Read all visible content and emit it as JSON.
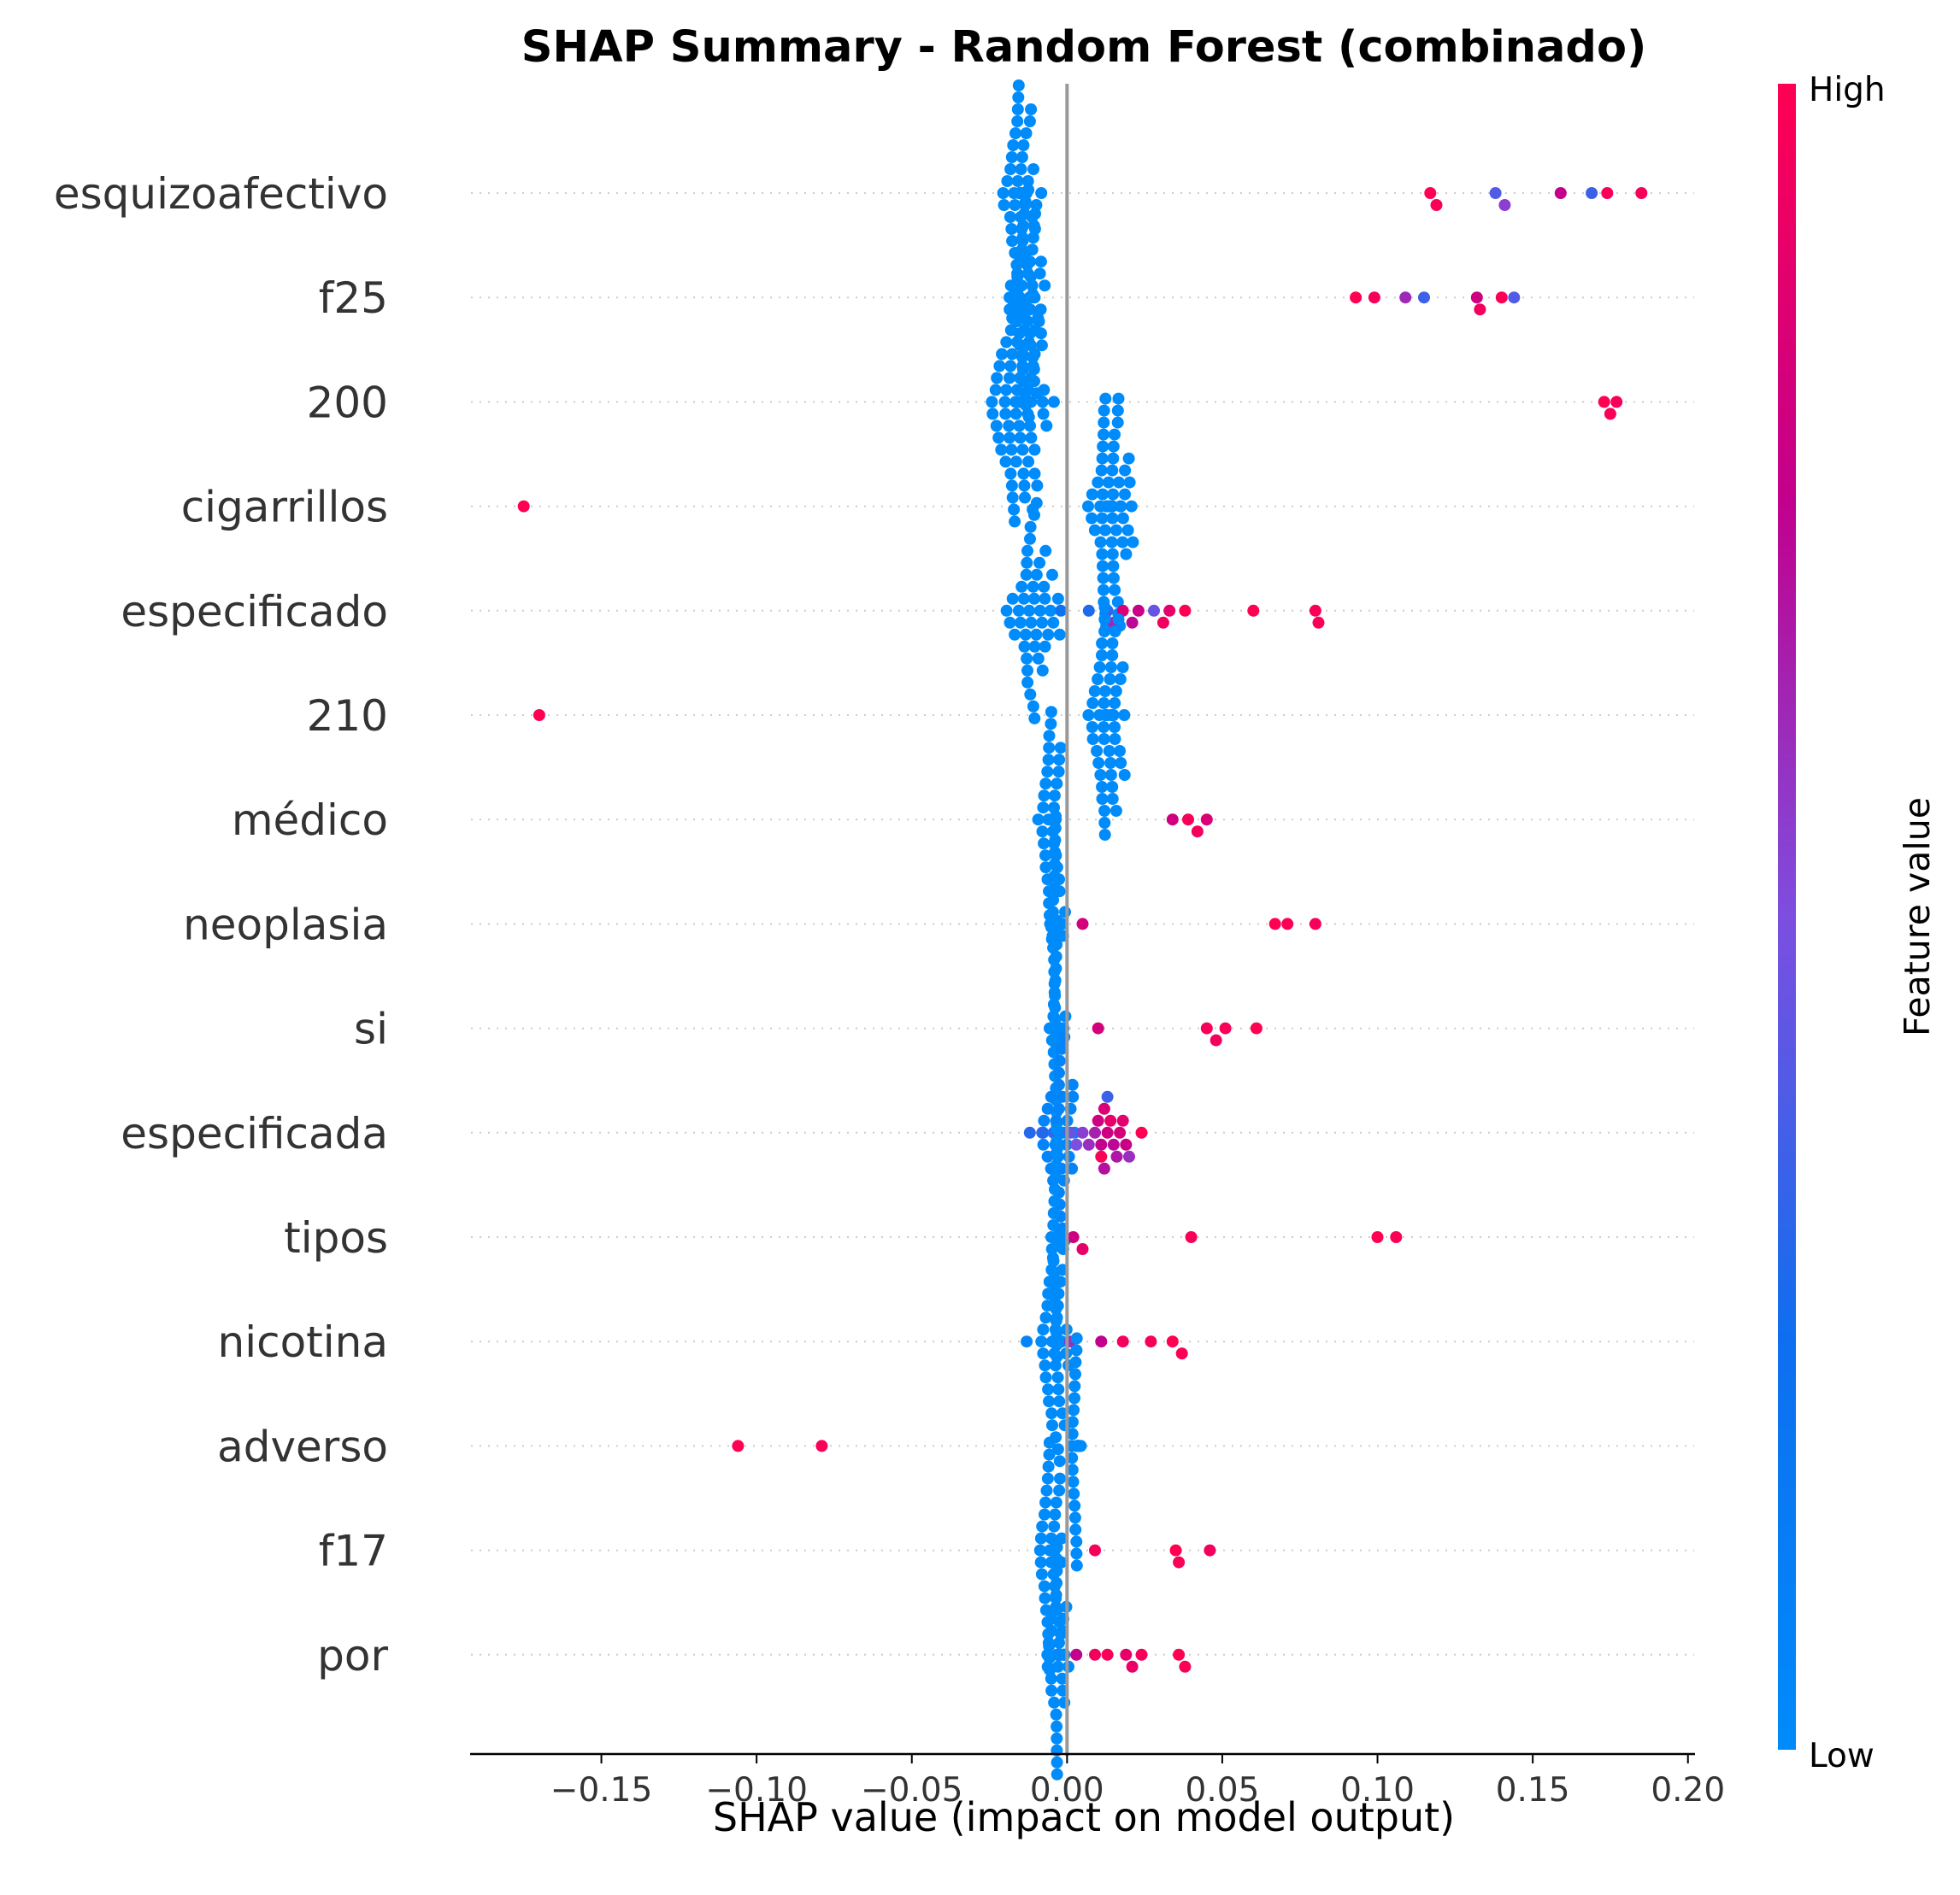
{
  "chart_data": {
    "type": "scatter",
    "subtype": "shap-beeswarm",
    "title": "SHAP Summary - Random Forest (combinado)",
    "xlabel": "SHAP value (impact on model output)",
    "xlim": [
      -0.192,
      0.202
    ],
    "xticks": [
      -0.15,
      -0.1,
      -0.05,
      0.0,
      0.05,
      0.1,
      0.15,
      0.2
    ],
    "xtick_labels": [
      "−0.15",
      "−0.10",
      "−0.05",
      "0.00",
      "0.05",
      "0.10",
      "0.15",
      "0.20"
    ],
    "colorbar": {
      "label": "Feature value",
      "high": "High",
      "low": "Low",
      "low_color": "#008bfb",
      "high_color": "#ff0052"
    },
    "features": [
      {
        "name": "esquizoafectivo",
        "cluster": {
          "center": -0.015,
          "spread": 0.009,
          "count": 60,
          "color": 0.0
        },
        "points": [
          [
            0.117,
            1.0
          ],
          [
            0.119,
            0.98
          ],
          [
            0.138,
            0.4
          ],
          [
            0.141,
            0.55
          ],
          [
            0.159,
            0.75
          ],
          [
            0.169,
            0.35
          ],
          [
            0.174,
            0.97
          ],
          [
            0.185,
            0.96
          ]
        ]
      },
      {
        "name": "f25",
        "cluster": {
          "center": -0.013,
          "spread": 0.008,
          "count": 50,
          "color": 0.0
        },
        "points": [
          [
            0.093,
            1.0
          ],
          [
            0.099,
            0.97
          ],
          [
            0.109,
            0.62
          ],
          [
            0.115,
            0.35
          ],
          [
            0.132,
            0.8
          ],
          [
            0.133,
            0.95
          ],
          [
            0.14,
            0.98
          ],
          [
            0.144,
            0.4
          ]
        ]
      },
      {
        "name": "200",
        "cluster": {
          "center": -0.015,
          "spread": 0.012,
          "count": 75,
          "color": 0.0
        },
        "points": [
          [
            0.173,
            1.0
          ],
          [
            0.175,
            0.98
          ],
          [
            0.177,
            0.97
          ]
        ]
      },
      {
        "name": "cigarrillos",
        "cluster": {
          "center": 0.014,
          "spread": 0.009,
          "count": 65,
          "color": 0.0
        },
        "points": [
          [
            -0.175,
            1.0
          ]
        ]
      },
      {
        "name": "especificado",
        "cluster": {
          "center": -0.01,
          "spread": 0.01,
          "count": 45,
          "color": 0.0
        },
        "points": [
          [
            -0.002,
            0.2
          ],
          [
            0.007,
            0.28
          ],
          [
            0.013,
            0.35
          ],
          [
            0.015,
            0.62
          ],
          [
            0.018,
            0.85
          ],
          [
            0.021,
            0.72
          ],
          [
            0.023,
            0.78
          ],
          [
            0.028,
            0.45
          ],
          [
            0.031,
            0.95
          ],
          [
            0.033,
            0.9
          ],
          [
            0.038,
            1.0
          ],
          [
            0.06,
            1.0
          ],
          [
            0.08,
            0.97
          ],
          [
            0.081,
            0.98
          ]
        ]
      },
      {
        "name": "210",
        "cluster": {
          "center": 0.013,
          "spread": 0.008,
          "count": 60,
          "color": 0.0
        },
        "points": [
          [
            -0.17,
            1.0
          ]
        ]
      },
      {
        "name": "médico",
        "cluster": {
          "center": -0.005,
          "spread": 0.005,
          "count": 40,
          "color": 0.0
        },
        "points": [
          [
            0.034,
            0.8
          ],
          [
            0.039,
            0.97
          ],
          [
            0.042,
            0.95
          ],
          [
            0.045,
            0.85
          ]
        ]
      },
      {
        "name": "neoplasia",
        "cluster": {
          "center": -0.003,
          "spread": 0.003,
          "count": 55,
          "color": 0.0
        },
        "points": [
          [
            0.005,
            0.82
          ],
          [
            0.067,
            1.0
          ],
          [
            0.071,
            0.98
          ],
          [
            0.08,
            0.97
          ]
        ]
      },
      {
        "name": "si",
        "cluster": {
          "center": -0.003,
          "spread": 0.003,
          "count": 50,
          "color": 0.0
        },
        "points": [
          [
            0.01,
            0.82
          ],
          [
            0.045,
            0.97
          ],
          [
            0.048,
            0.95
          ],
          [
            0.051,
            0.98
          ],
          [
            0.061,
            1.0
          ]
        ]
      },
      {
        "name": "especificada",
        "cluster": {
          "center": -0.002,
          "spread": 0.008,
          "count": 35,
          "color": 0.05
        },
        "points": [
          [
            -0.012,
            0.3
          ],
          [
            -0.008,
            0.3
          ],
          [
            -0.004,
            0.35
          ],
          [
            0.001,
            0.45
          ],
          [
            0.003,
            0.5
          ],
          [
            0.005,
            0.55
          ],
          [
            0.007,
            0.6
          ],
          [
            0.009,
            0.65
          ],
          [
            0.01,
            0.8
          ],
          [
            0.011,
            0.75
          ],
          [
            0.012,
            0.85
          ],
          [
            0.012,
            0.7
          ],
          [
            0.013,
            0.8
          ],
          [
            0.014,
            0.9
          ],
          [
            0.015,
            0.72
          ],
          [
            0.016,
            0.68
          ],
          [
            0.017,
            0.82
          ],
          [
            0.018,
            0.88
          ],
          [
            0.019,
            0.78
          ],
          [
            0.02,
            0.6
          ],
          [
            0.011,
            0.98
          ],
          [
            0.013,
            0.35
          ],
          [
            0.024,
            1.0
          ]
        ]
      },
      {
        "name": "tipos",
        "cluster": {
          "center": -0.003,
          "spread": 0.003,
          "count": 45,
          "color": 0.0
        },
        "points": [
          [
            0.002,
            0.8
          ],
          [
            0.005,
            0.9
          ],
          [
            0.04,
            0.97
          ],
          [
            0.1,
            1.0
          ],
          [
            0.106,
            0.98
          ]
        ]
      },
      {
        "name": "nicotina",
        "cluster": {
          "center": -0.004,
          "spread": 0.006,
          "count": 40,
          "color": 0.0
        },
        "points": [
          [
            -0.013,
            0.05
          ],
          [
            0.001,
            0.6
          ],
          [
            0.011,
            0.75
          ],
          [
            0.018,
            0.95
          ],
          [
            0.027,
            0.97
          ],
          [
            0.034,
            1.0
          ],
          [
            0.037,
            0.98
          ]
        ]
      },
      {
        "name": "adverso",
        "cluster": {
          "center": 0.003,
          "spread": 0.002,
          "count": 40,
          "color": 0.0
        },
        "points": [
          [
            -0.106,
            1.0
          ],
          [
            -0.079,
            0.98
          ]
        ]
      },
      {
        "name": "f17",
        "cluster": {
          "center": -0.005,
          "spread": 0.006,
          "count": 40,
          "color": 0.0
        },
        "points": [
          [
            0.009,
            0.97
          ],
          [
            0.035,
            1.0
          ],
          [
            0.036,
            0.98
          ],
          [
            0.046,
            0.95
          ]
        ]
      },
      {
        "name": "por",
        "cluster": {
          "center": -0.003,
          "spread": 0.004,
          "count": 50,
          "color": 0.0
        },
        "points": [
          [
            0.003,
            0.75
          ],
          [
            0.009,
            0.95
          ],
          [
            0.013,
            0.97
          ],
          [
            0.019,
            0.9
          ],
          [
            0.021,
            0.92
          ],
          [
            0.024,
            0.96
          ],
          [
            0.036,
            1.0
          ],
          [
            0.038,
            0.98
          ]
        ]
      }
    ],
    "grid": false
  }
}
